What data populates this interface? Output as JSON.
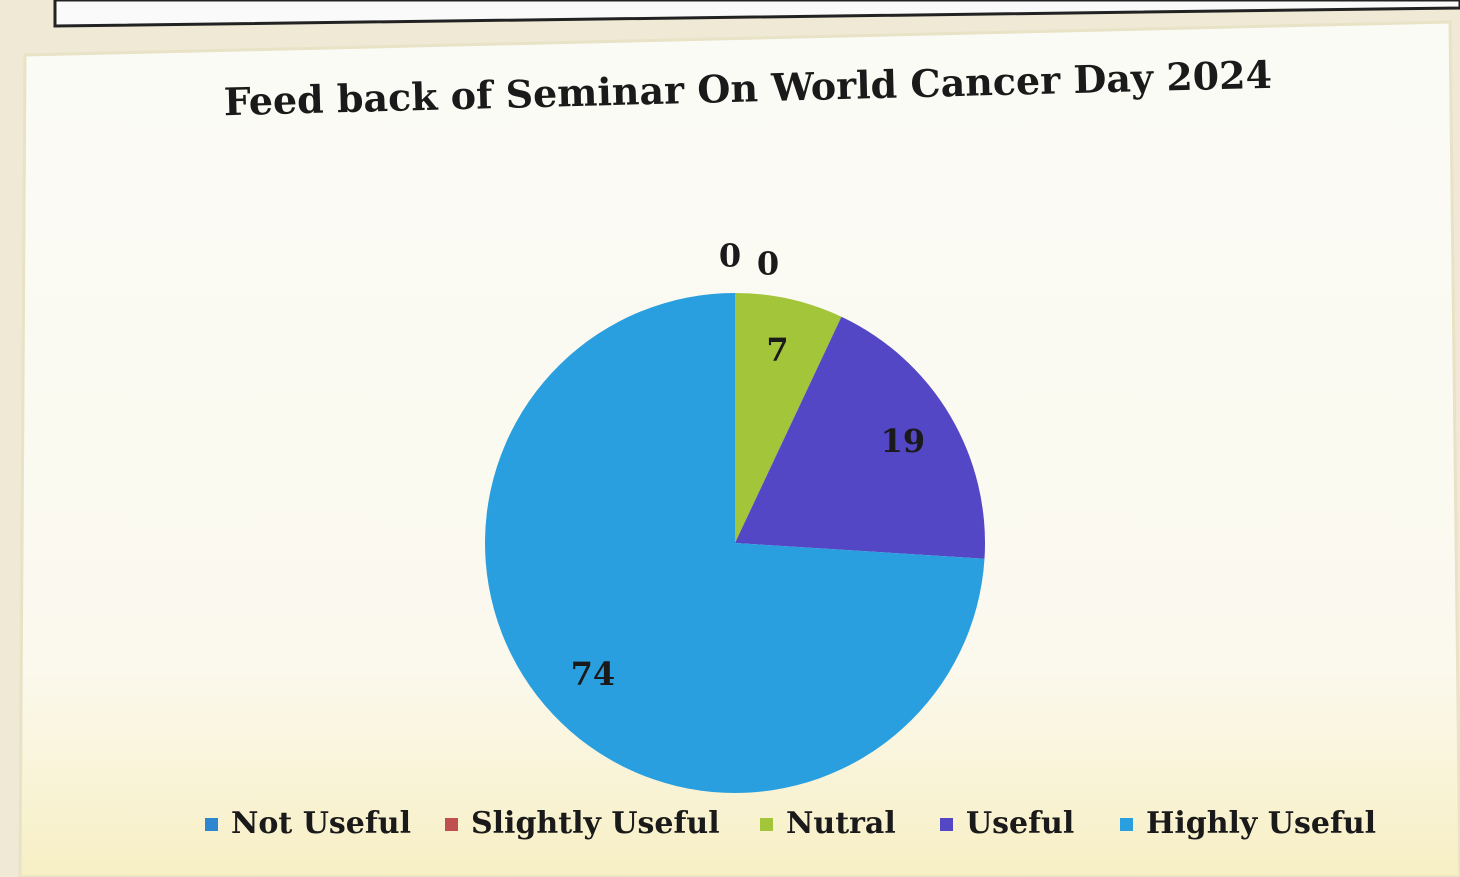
{
  "chart_data": {
    "type": "pie",
    "title": "Feed back of Seminar On World Cancer Day 2024",
    "categories": [
      "Not Useful",
      "Slightly Useful",
      "Nutral",
      "Useful",
      "Highly Useful"
    ],
    "values": [
      0,
      0,
      7,
      19,
      74
    ],
    "colors": [
      "#2f86d0",
      "#c0504d",
      "#a3c53a",
      "#5447c6",
      "#2a9fdf"
    ],
    "legend": "bottom"
  }
}
